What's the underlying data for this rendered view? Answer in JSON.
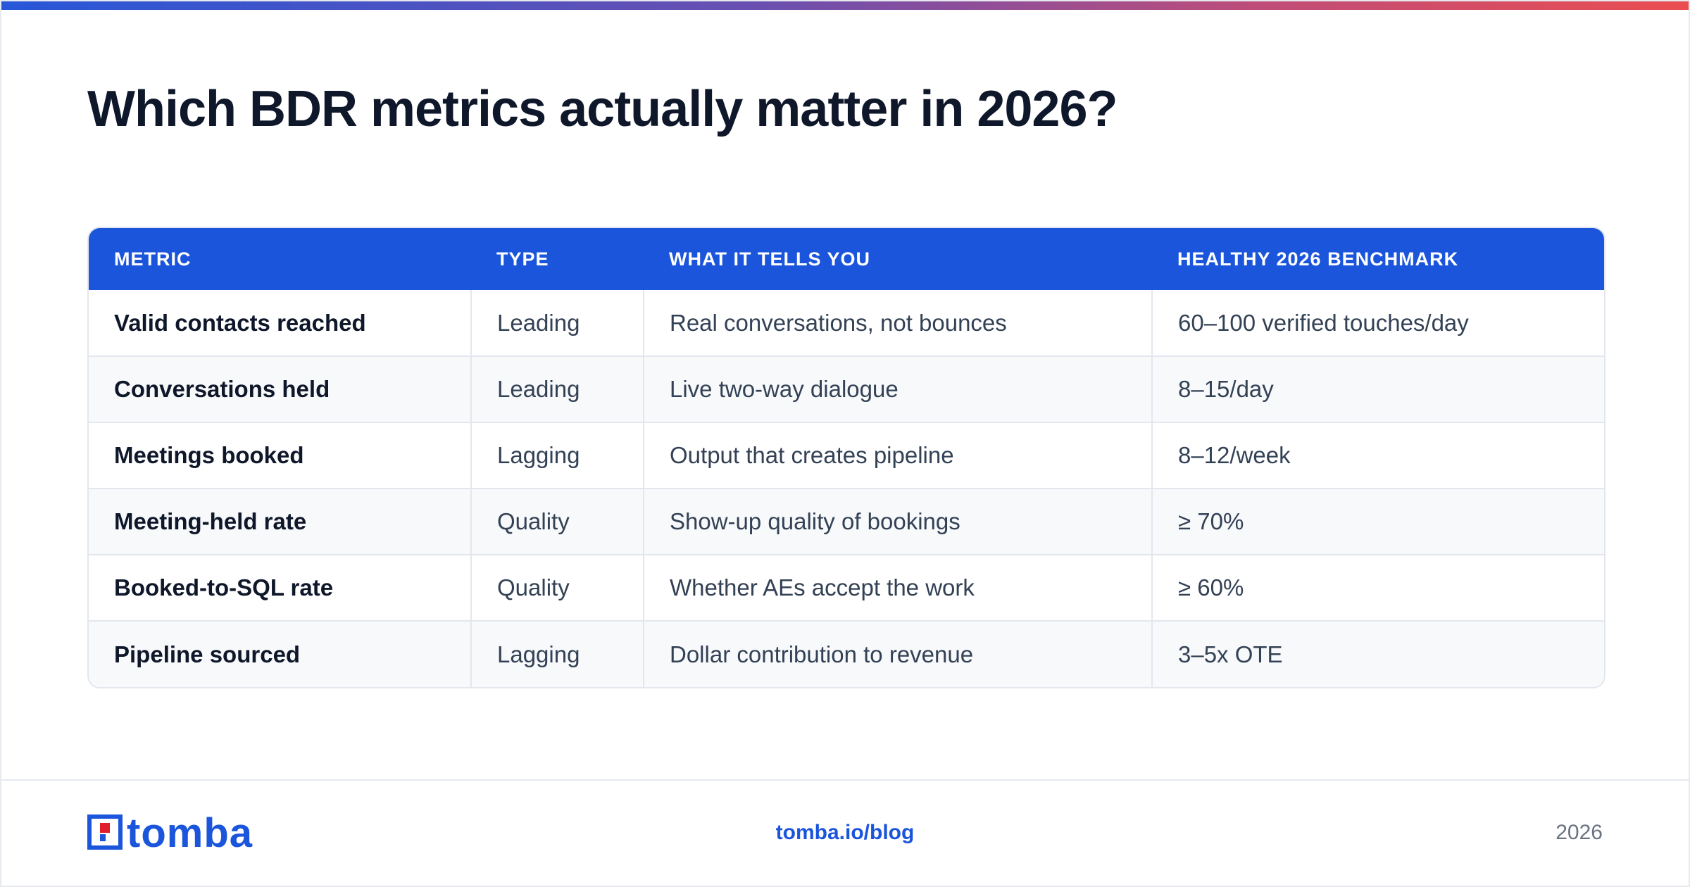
{
  "header": {
    "title": "Which BDR metrics actually matter in 2026?"
  },
  "table": {
    "columns": [
      "METRIC",
      "TYPE",
      "WHAT IT TELLS YOU",
      "HEALTHY 2026 BENCHMARK"
    ],
    "rows": [
      {
        "metric": "Valid contacts reached",
        "type": "Leading",
        "tells": "Real conversations, not bounces",
        "benchmark": "60–100 verified touches/day"
      },
      {
        "metric": "Conversations held",
        "type": "Leading",
        "tells": "Live two-way dialogue",
        "benchmark": "8–15/day"
      },
      {
        "metric": "Meetings booked",
        "type": "Lagging",
        "tells": "Output that creates pipeline",
        "benchmark": "8–12/week"
      },
      {
        "metric": "Meeting-held rate",
        "type": "Quality",
        "tells": "Show-up quality of bookings",
        "benchmark": "≥ 70%"
      },
      {
        "metric": "Booked-to-SQL rate",
        "type": "Quality",
        "tells": "Whether AEs accept the work",
        "benchmark": "≥ 60%"
      },
      {
        "metric": "Pipeline sourced",
        "type": "Lagging",
        "tells": "Dollar contribution to revenue",
        "benchmark": "3–5x OTE"
      }
    ]
  },
  "footer": {
    "logo_text": "tomba",
    "url": "tomba.io/blog",
    "year": "2026"
  },
  "colors": {
    "accent": "#1b55db",
    "title": "#0f172a",
    "logo_red": "#e11d2e"
  }
}
